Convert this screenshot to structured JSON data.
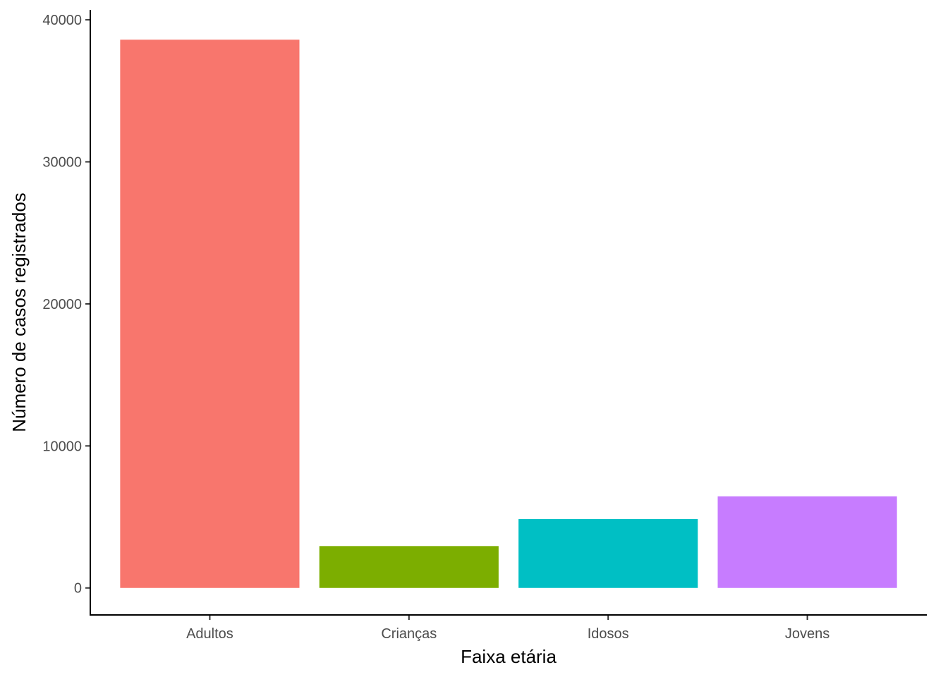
{
  "chart_data": {
    "type": "bar",
    "title": "",
    "xlabel": "Faixa etária",
    "ylabel": "Número de casos registrados",
    "categories": [
      "Adultos",
      "Crianças",
      "Idosos",
      "Jovens"
    ],
    "values": [
      38600,
      2950,
      4850,
      6450
    ],
    "colors": [
      "#F8766D",
      "#7CAE00",
      "#00BFC4",
      "#C77CFF"
    ],
    "ylim": [
      -1900,
      40700
    ],
    "yticks": [
      0,
      10000,
      20000,
      30000,
      40000
    ],
    "grid": false,
    "legend": "none"
  }
}
